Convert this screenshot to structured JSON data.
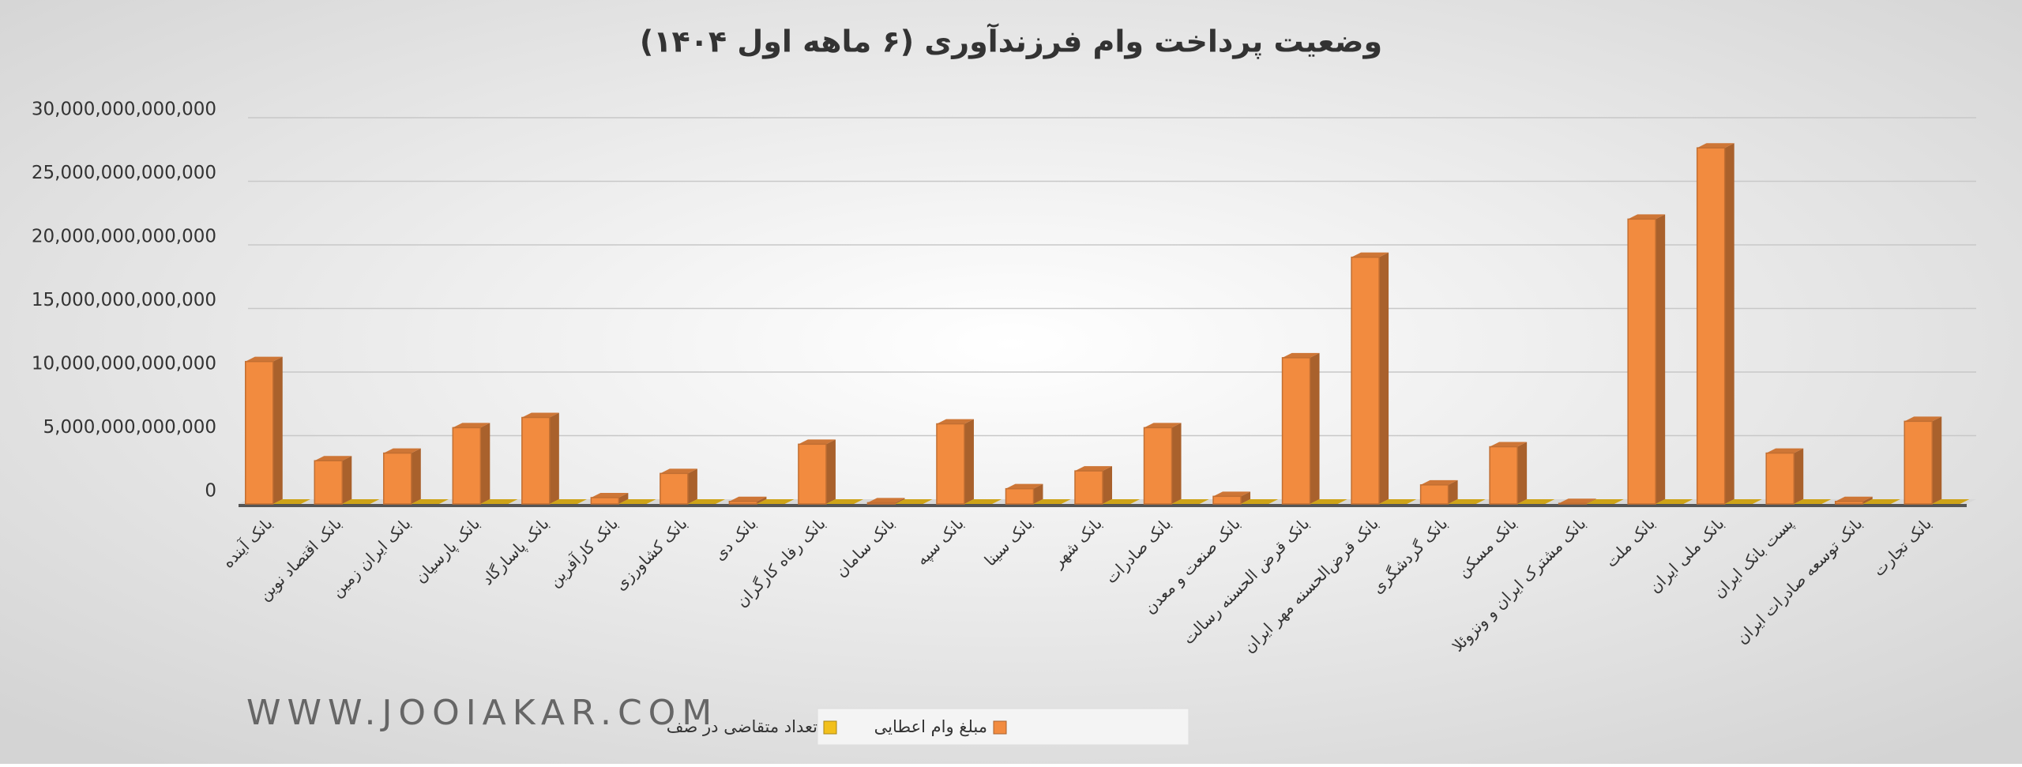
{
  "chart_data": {
    "type": "bar",
    "title": "وضعیت پرداخت وام فرزندآوری (۶ ماهه اول ۱۴۰۴)",
    "watermark": "WWW.JOOIAKAR.COM",
    "categories": [
      "بانک آینده",
      "بانک اقتصاد نوین",
      "بانک ایران زمین",
      "بانک پارسیان",
      "بانک پاسارگاد",
      "بانک کارآفرین",
      "بانک کشاورزی",
      "بانک دی",
      "بانک رفاه کارگران",
      "بانک سامان",
      "بانک سپه",
      "بانک سینا",
      "بانک شهر",
      "بانک صادرات",
      "بانک صنعت و معدن",
      "بانک قرض الحسنه رسالت",
      "بانک قرض‌الحسنه مهر ایران",
      "بانک گردشگری",
      "بانک مسکن",
      "بانک مشترک ایران و ونزوئلا",
      "بانک ملت",
      "بانک ملی ایران",
      "پست بانک ایران",
      "بانک توسعه صادرات ایران",
      "بانک تجارت"
    ],
    "series": [
      {
        "name": "مبلغ وام اعطایی",
        "color": "#f28b3f",
        "values": [
          11200000000000,
          3400000000000,
          4000000000000,
          6000000000000,
          6800000000000,
          500000000000,
          2400000000000,
          200000000000,
          4700000000000,
          100000000000,
          6300000000000,
          1200000000000,
          2600000000000,
          6000000000000,
          600000000000,
          11500000000000,
          19400000000000,
          1500000000000,
          4500000000000,
          50000000000,
          22400000000000,
          28000000000000,
          4000000000000,
          200000000000,
          6500000000000
        ]
      },
      {
        "name": "تعداد متقاضی در صف",
        "color": "#f2c01c",
        "values": [
          0,
          0,
          0,
          0,
          0,
          0,
          0,
          0,
          0,
          0,
          0,
          0,
          0,
          0,
          0,
          0,
          0,
          0,
          0,
          0,
          0,
          0,
          0,
          0,
          0
        ]
      }
    ],
    "ylim": [
      0,
      30000000000000
    ],
    "yticks": [
      {
        "value": 0,
        "label": "0"
      },
      {
        "value": 5000000000000,
        "label": "5,000,000,000,000"
      },
      {
        "value": 10000000000000,
        "label": "10,000,000,000,000"
      },
      {
        "value": 15000000000000,
        "label": "15,000,000,000,000"
      },
      {
        "value": 20000000000000,
        "label": "20,000,000,000,000"
      },
      {
        "value": 25000000000000,
        "label": "25,000,000,000,000"
      },
      {
        "value": 30000000000000,
        "label": "30,000,000,000,000"
      }
    ],
    "grid": true,
    "legend": "bottom"
  }
}
